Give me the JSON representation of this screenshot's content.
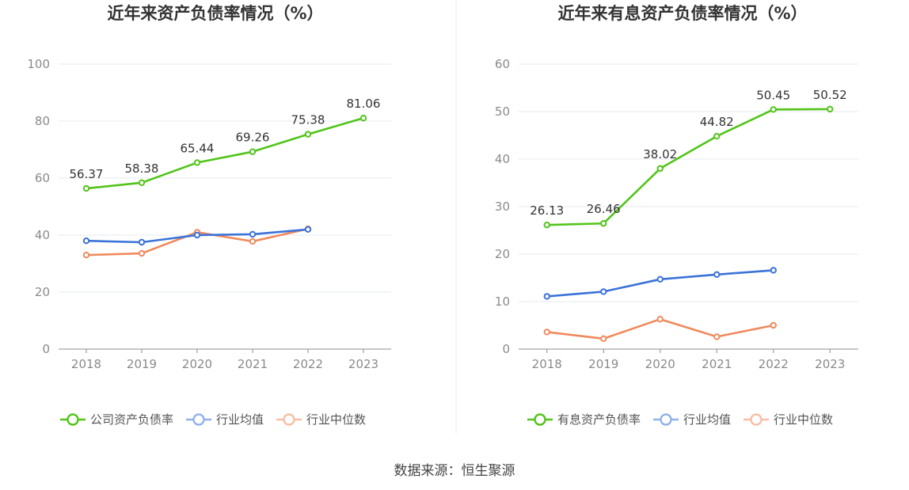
{
  "source": "数据来源：恒生聚源",
  "chart_data": [
    {
      "type": "line",
      "title": "近年来资产负债率情况（%）",
      "x": [
        "2018",
        "2019",
        "2020",
        "2021",
        "2022",
        "2023"
      ],
      "ylim": [
        0,
        100
      ],
      "yticks": [
        0,
        20,
        40,
        60,
        80,
        100
      ],
      "grid": true,
      "legend_position": "bottom",
      "series": [
        {
          "name": "公司资产负债率",
          "color": "#52c41a",
          "labels": true,
          "values": [
            56.37,
            58.38,
            65.44,
            69.26,
            75.38,
            81.06
          ]
        },
        {
          "name": "行业均值",
          "color": "#3b73d9",
          "labels": false,
          "values": [
            38.0,
            37.5,
            40.0,
            40.3,
            42.0,
            null
          ]
        },
        {
          "name": "行业中位数",
          "color": "#f08a5d",
          "labels": false,
          "values": [
            33.0,
            33.6,
            41.0,
            37.8,
            42.2,
            null
          ]
        }
      ]
    },
    {
      "type": "line",
      "title": "近年来有息资产负债率情况（%）",
      "x": [
        "2018",
        "2019",
        "2020",
        "2021",
        "2022",
        "2023"
      ],
      "ylim": [
        0,
        60
      ],
      "yticks": [
        0,
        10,
        20,
        30,
        40,
        50,
        60
      ],
      "grid": true,
      "legend_position": "bottom",
      "series": [
        {
          "name": "有息资产负债率",
          "color": "#52c41a",
          "labels": true,
          "values": [
            26.13,
            26.46,
            38.02,
            44.82,
            50.45,
            50.52
          ]
        },
        {
          "name": "行业均值",
          "color": "#3b73d9",
          "labels": false,
          "values": [
            11.1,
            12.1,
            14.7,
            15.7,
            16.6,
            null
          ]
        },
        {
          "name": "行业中位数",
          "color": "#f08a5d",
          "labels": false,
          "values": [
            3.6,
            2.2,
            6.3,
            2.6,
            5.0,
            null
          ]
        }
      ]
    }
  ]
}
